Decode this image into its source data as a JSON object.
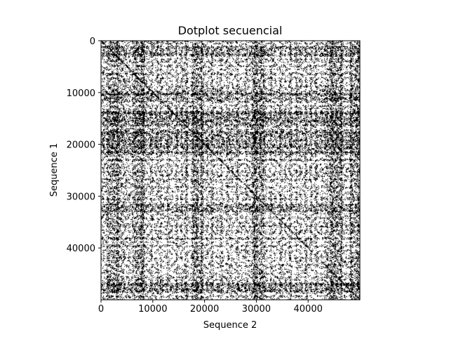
{
  "chart_data": {
    "type": "heatmap",
    "subtype": "dotplot",
    "title": "Dotplot secuencial",
    "xlabel": "Sequence 2",
    "ylabel": "Sequence 1",
    "xlim": [
      0,
      50000
    ],
    "ylim": [
      0,
      50000
    ],
    "y_inverted": true,
    "xticks": [
      0,
      10000,
      20000,
      30000,
      40000
    ],
    "yticks": [
      0,
      10000,
      20000,
      30000,
      40000
    ],
    "colormap": "binary",
    "match_color": "#000000",
    "background_color": "#ffffff",
    "grid": false,
    "legend": "none",
    "dense_bands_seq1": [
      [
        1000,
        3000
      ],
      [
        9500,
        11500
      ],
      [
        13500,
        16500
      ],
      [
        17000,
        22000
      ],
      [
        31500,
        33000
      ],
      [
        46500,
        48500
      ]
    ],
    "dense_bands_seq2": [
      [
        1500,
        4000
      ],
      [
        6500,
        8500
      ],
      [
        17500,
        19500
      ],
      [
        29000,
        31500
      ],
      [
        43500,
        46500
      ],
      [
        48000,
        50000
      ]
    ]
  }
}
